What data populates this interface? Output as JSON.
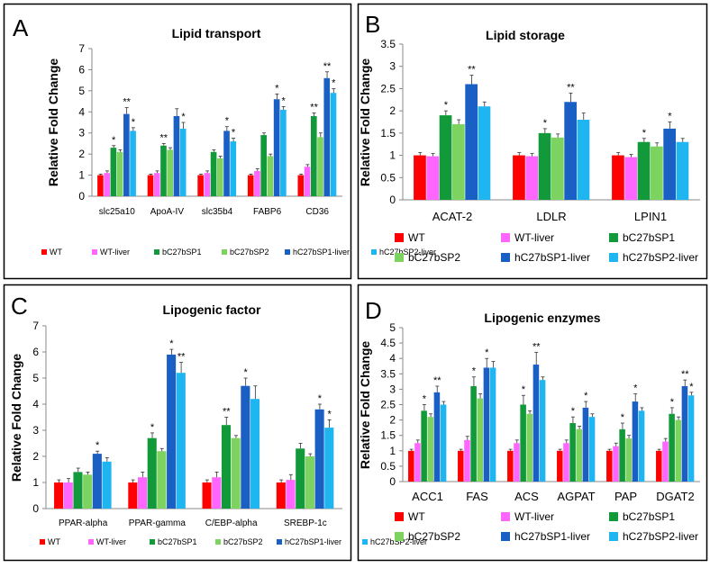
{
  "series_names": [
    "WT",
    "WT-liver",
    "bC27bSP1",
    "bC27bSP2",
    "hC27bSP1-liver",
    "hC27bSP2-liver"
  ],
  "series_colors": [
    "#ff0000",
    "#ff66ff",
    "#129a3a",
    "#7dd35f",
    "#1a5fc4",
    "#1fb5f0"
  ],
  "chart_data": [
    {
      "panel": "A",
      "type": "bar",
      "title": "Lipid transport",
      "ylabel": "Relative Fold Change",
      "ylim": [
        0,
        7
      ],
      "yticks": [
        "0",
        "1",
        "2",
        "3",
        "4",
        "5",
        "6",
        "7"
      ],
      "categories": [
        "slc25a10",
        "ApoA-IV",
        "slc35b4",
        "FABP6",
        "CD36"
      ],
      "series": [
        {
          "name": "WT",
          "values": [
            1.0,
            1.0,
            1.0,
            1.0,
            1.0
          ]
        },
        {
          "name": "WT-liver",
          "values": [
            1.1,
            1.1,
            1.1,
            1.2,
            1.4
          ]
        },
        {
          "name": "bC27bSP1",
          "values": [
            2.3,
            2.4,
            2.1,
            2.9,
            3.8
          ]
        },
        {
          "name": "bC27bSP2",
          "values": [
            2.1,
            2.2,
            1.8,
            1.9,
            2.8
          ]
        },
        {
          "name": "hC27bSP1-liver",
          "values": [
            3.9,
            3.8,
            3.1,
            4.6,
            5.6
          ]
        },
        {
          "name": "hC27bSP2-liver",
          "values": [
            3.1,
            3.2,
            2.6,
            4.1,
            4.9
          ]
        }
      ],
      "errors": [
        [
          0.05,
          0.05,
          0.05,
          0.05,
          0.05
        ],
        [
          0.1,
          0.1,
          0.1,
          0.1,
          0.1
        ],
        [
          0.1,
          0.1,
          0.1,
          0.1,
          0.15
        ],
        [
          0.1,
          0.1,
          0.1,
          0.1,
          0.2
        ],
        [
          0.3,
          0.35,
          0.2,
          0.25,
          0.3
        ],
        [
          0.15,
          0.3,
          0.15,
          0.15,
          0.2
        ]
      ],
      "annotations": [
        {
          "series": 2,
          "category": 0,
          "text": "*"
        },
        {
          "series": 4,
          "category": 0,
          "text": "**"
        },
        {
          "series": 5,
          "category": 0,
          "text": "*"
        },
        {
          "series": 2,
          "category": 1,
          "text": "**"
        },
        {
          "series": 5,
          "category": 1,
          "text": "*"
        },
        {
          "series": 4,
          "category": 2,
          "text": "*"
        },
        {
          "series": 5,
          "category": 2,
          "text": "*"
        },
        {
          "series": 4,
          "category": 3,
          "text": "*"
        },
        {
          "series": 5,
          "category": 3,
          "text": "*"
        },
        {
          "series": 2,
          "category": 4,
          "text": "**"
        },
        {
          "series": 4,
          "category": 4,
          "text": "**"
        },
        {
          "series": 5,
          "category": 4,
          "text": "*"
        }
      ]
    },
    {
      "panel": "B",
      "type": "bar",
      "title": "Lipid storage",
      "ylabel": "Relative Fold Change",
      "ylim": [
        0,
        3.5
      ],
      "yticks": [
        "0",
        "0.5",
        "1",
        "1.5",
        "2",
        "2.5",
        "3",
        "3.5"
      ],
      "categories": [
        "ACAT-2",
        "LDLR",
        "LPIN1"
      ],
      "series": [
        {
          "name": "WT",
          "values": [
            1.0,
            1.0,
            1.0
          ]
        },
        {
          "name": "WT-liver",
          "values": [
            0.98,
            0.98,
            0.96
          ]
        },
        {
          "name": "bC27bSP1",
          "values": [
            1.9,
            1.5,
            1.3
          ]
        },
        {
          "name": "bC27bSP2",
          "values": [
            1.7,
            1.4,
            1.2
          ]
        },
        {
          "name": "hC27bSP1-liver",
          "values": [
            2.6,
            2.2,
            1.6
          ]
        },
        {
          "name": "hC27bSP2-liver",
          "values": [
            2.1,
            1.8,
            1.3
          ]
        }
      ],
      "errors": [
        [
          0.06,
          0.06,
          0.06
        ],
        [
          0.06,
          0.06,
          0.06
        ],
        [
          0.1,
          0.1,
          0.08
        ],
        [
          0.1,
          0.08,
          0.08
        ],
        [
          0.2,
          0.2,
          0.15
        ],
        [
          0.1,
          0.15,
          0.08
        ]
      ],
      "annotations": [
        {
          "series": 2,
          "category": 0,
          "text": "*"
        },
        {
          "series": 4,
          "category": 0,
          "text": "**"
        },
        {
          "series": 2,
          "category": 1,
          "text": "*"
        },
        {
          "series": 4,
          "category": 1,
          "text": "**"
        },
        {
          "series": 2,
          "category": 2,
          "text": "*"
        },
        {
          "series": 4,
          "category": 2,
          "text": "*"
        }
      ]
    },
    {
      "panel": "C",
      "type": "bar",
      "title": "Lipogenic factor",
      "ylabel": "Relative Fold Change",
      "ylim": [
        0,
        7
      ],
      "yticks": [
        "0",
        "1",
        "2",
        "3",
        "4",
        "5",
        "6",
        "7"
      ],
      "categories": [
        "PPAR-alpha",
        "PPAR-gamma",
        "C/EBP-alpha",
        "SREBP-1c"
      ],
      "series": [
        {
          "name": "WT",
          "values": [
            1.0,
            1.0,
            1.0,
            1.0
          ]
        },
        {
          "name": "WT-liver",
          "values": [
            1.0,
            1.2,
            1.2,
            1.1
          ]
        },
        {
          "name": "bC27bSP1",
          "values": [
            1.4,
            2.7,
            3.2,
            2.3
          ]
        },
        {
          "name": "bC27bSP2",
          "values": [
            1.3,
            2.2,
            2.7,
            2.0
          ]
        },
        {
          "name": "hC27bSP1-liver",
          "values": [
            2.1,
            5.9,
            4.7,
            3.8
          ]
        },
        {
          "name": "hC27bSP2-liver",
          "values": [
            1.8,
            5.2,
            4.2,
            3.1
          ]
        }
      ],
      "errors": [
        [
          0.1,
          0.1,
          0.1,
          0.1
        ],
        [
          0.15,
          0.2,
          0.2,
          0.2
        ],
        [
          0.15,
          0.2,
          0.3,
          0.2
        ],
        [
          0.1,
          0.1,
          0.1,
          0.1
        ],
        [
          0.1,
          0.2,
          0.3,
          0.2
        ],
        [
          0.15,
          0.4,
          0.5,
          0.3
        ]
      ],
      "annotations": [
        {
          "series": 4,
          "category": 0,
          "text": "*"
        },
        {
          "series": 2,
          "category": 1,
          "text": "*"
        },
        {
          "series": 4,
          "category": 1,
          "text": "*"
        },
        {
          "series": 5,
          "category": 1,
          "text": "**"
        },
        {
          "series": 2,
          "category": 2,
          "text": "**"
        },
        {
          "series": 4,
          "category": 2,
          "text": "*"
        },
        {
          "series": 4,
          "category": 3,
          "text": "*"
        },
        {
          "series": 5,
          "category": 3,
          "text": "*"
        }
      ]
    },
    {
      "panel": "D",
      "type": "bar",
      "title": "Lipogenic enzymes",
      "ylabel": "Relative Fold Change",
      "ylim": [
        0,
        5
      ],
      "yticks": [
        "0",
        "0.5",
        "1",
        "1.5",
        "2",
        "2.5",
        "3",
        "3.5",
        "4",
        "4.5",
        "5"
      ],
      "categories": [
        "ACC1",
        "FAS",
        "ACS",
        "AGPAT",
        "PAP",
        "DGAT2"
      ],
      "series": [
        {
          "name": "WT",
          "values": [
            1.0,
            1.0,
            1.0,
            1.0,
            1.0,
            1.0
          ]
        },
        {
          "name": "WT-liver",
          "values": [
            1.25,
            1.35,
            1.25,
            1.25,
            1.15,
            1.3
          ]
        },
        {
          "name": "bC27bSP1",
          "values": [
            2.3,
            3.1,
            2.5,
            1.9,
            1.7,
            2.2
          ]
        },
        {
          "name": "bC27bSP2",
          "values": [
            2.1,
            2.7,
            2.2,
            1.7,
            1.4,
            2.0
          ]
        },
        {
          "name": "hC27bSP1-liver",
          "values": [
            2.9,
            3.7,
            3.8,
            2.4,
            2.6,
            3.1
          ]
        },
        {
          "name": "hC27bSP2-liver",
          "values": [
            2.5,
            3.7,
            3.3,
            2.1,
            2.3,
            2.8
          ]
        }
      ],
      "errors": [
        [
          0.05,
          0.05,
          0.05,
          0.05,
          0.05,
          0.05
        ],
        [
          0.1,
          0.12,
          0.1,
          0.1,
          0.1,
          0.1
        ],
        [
          0.2,
          0.3,
          0.3,
          0.2,
          0.2,
          0.2
        ],
        [
          0.1,
          0.15,
          0.1,
          0.1,
          0.1,
          0.1
        ],
        [
          0.2,
          0.3,
          0.4,
          0.2,
          0.25,
          0.2
        ],
        [
          0.1,
          0.2,
          0.1,
          0.1,
          0.1,
          0.1
        ]
      ],
      "annotations": [
        {
          "series": 2,
          "category": 0,
          "text": "*"
        },
        {
          "series": 4,
          "category": 0,
          "text": "**"
        },
        {
          "series": 2,
          "category": 1,
          "text": "*"
        },
        {
          "series": 4,
          "category": 1,
          "text": "*"
        },
        {
          "series": 2,
          "category": 2,
          "text": "*"
        },
        {
          "series": 4,
          "category": 2,
          "text": "**"
        },
        {
          "series": 2,
          "category": 3,
          "text": "*"
        },
        {
          "series": 4,
          "category": 3,
          "text": "*"
        },
        {
          "series": 2,
          "category": 4,
          "text": "*"
        },
        {
          "series": 4,
          "category": 4,
          "text": "*"
        },
        {
          "series": 2,
          "category": 5,
          "text": "*"
        },
        {
          "series": 4,
          "category": 5,
          "text": "**"
        },
        {
          "series": 5,
          "category": 5,
          "text": "*"
        }
      ]
    }
  ]
}
